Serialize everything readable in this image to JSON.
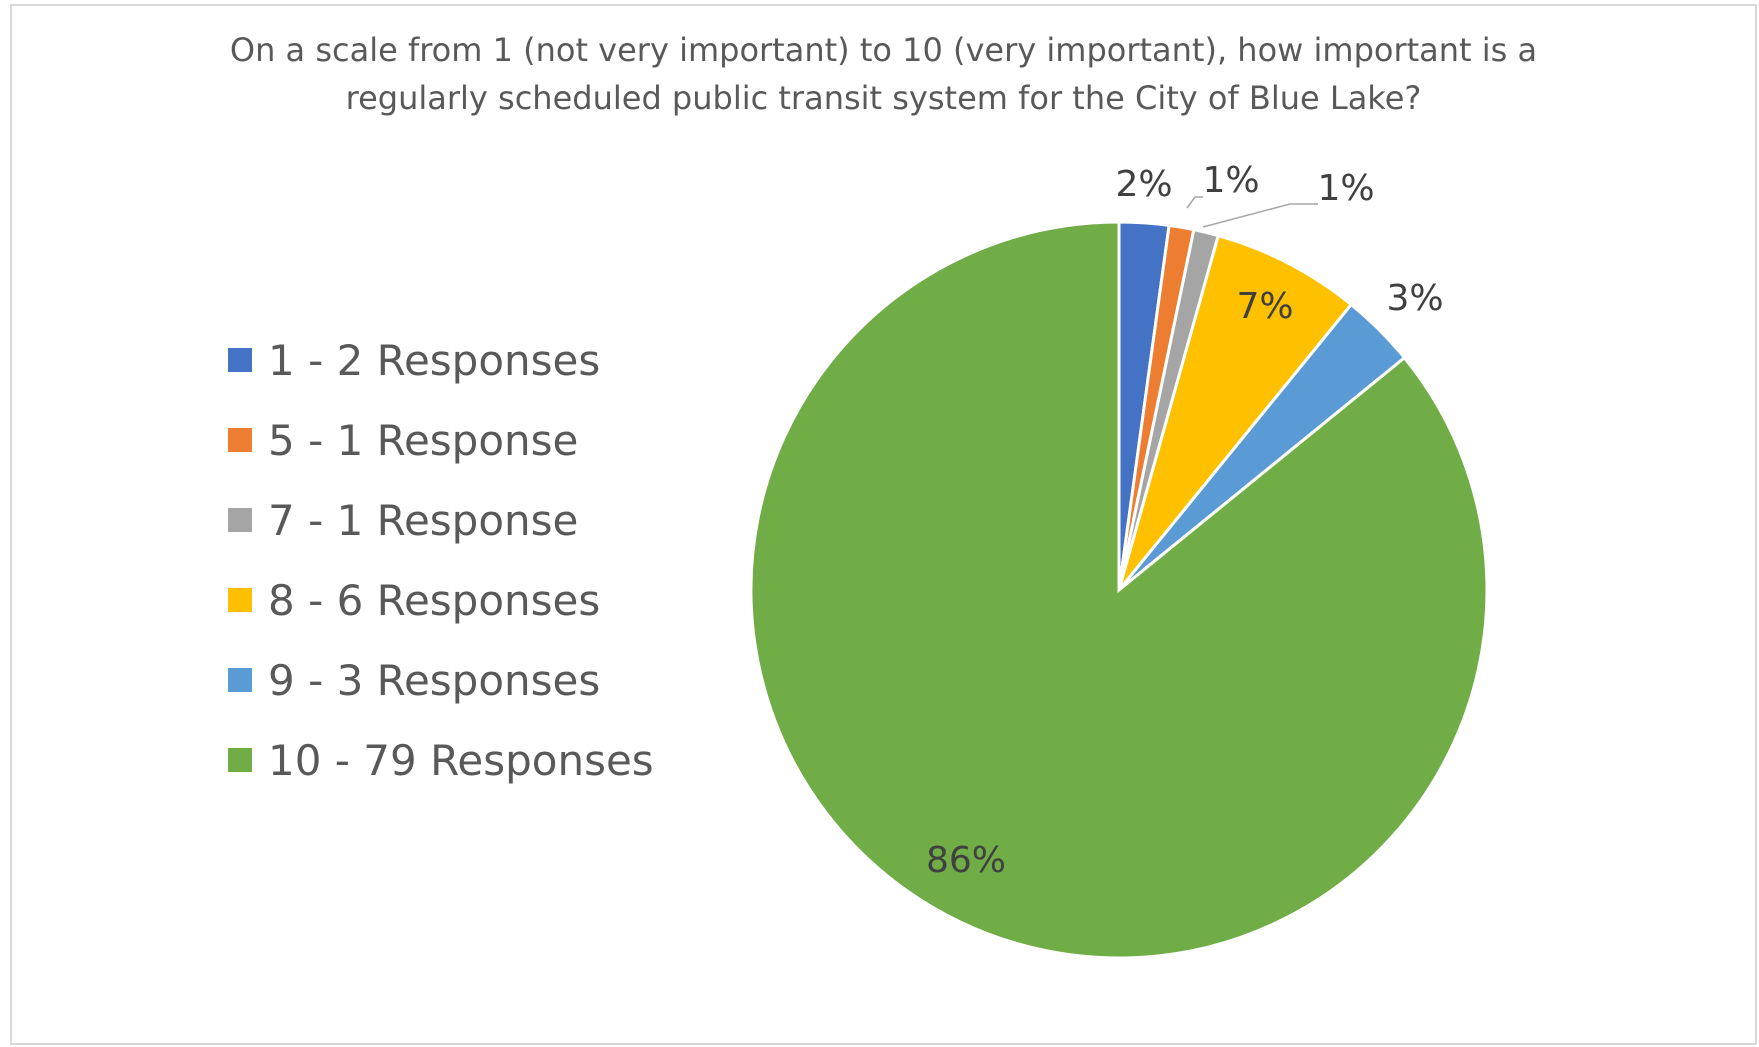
{
  "chart_data": {
    "type": "pie",
    "title": "On a scale from 1 (not very important) to 10 (very important), how important is a regularly scheduled public transit system for the City of Blue Lake?",
    "title_lines": [
      "On a scale from 1 (not very important) to 10 (very important), how important is a",
      "regularly scheduled public transit system for the City of Blue Lake?"
    ],
    "legend_position": "left",
    "categories": [
      "1 - 2 Responses",
      "5 - 1 Response",
      "7 - 1 Response",
      "8 - 6 Responses",
      "9 - 3 Responses",
      "10 - 79 Responses"
    ],
    "values": [
      2,
      1,
      1,
      6,
      3,
      79
    ],
    "data_labels": [
      "2%",
      "1%",
      "1%",
      "7%",
      "3%",
      "86%"
    ],
    "colors": [
      "#4472C4",
      "#ED7D31",
      "#A5A5A5",
      "#FFC000",
      "#5B9BD5",
      "#70AD47"
    ]
  }
}
